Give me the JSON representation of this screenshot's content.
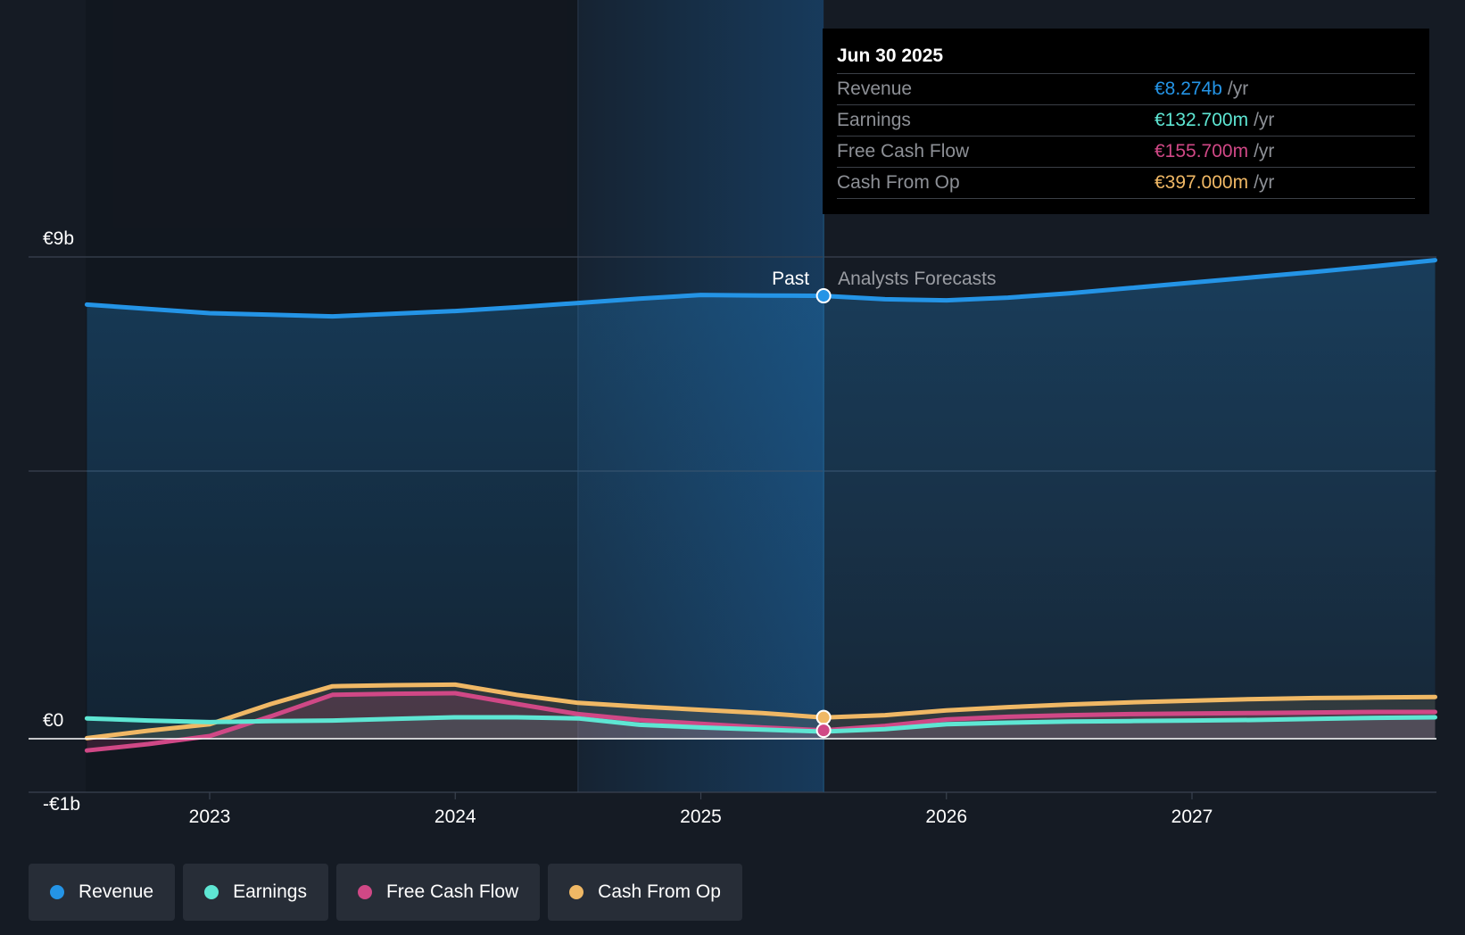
{
  "colors": {
    "revenue": "#2494e6",
    "earnings": "#5ee6d3",
    "fcf": "#d04886",
    "cfo": "#f0b865",
    "background": "#151b24"
  },
  "tooltip": {
    "date": "Jun 30 2025",
    "unit": "/yr",
    "rows": [
      {
        "label": "Revenue",
        "value": "€8.274b"
      },
      {
        "label": "Earnings",
        "value": "€132.700m"
      },
      {
        "label": "Free Cash Flow",
        "value": "€155.700m"
      },
      {
        "label": "Cash From Op",
        "value": "€397.000m"
      }
    ]
  },
  "chart_data": {
    "type": "line",
    "title": "",
    "xlabel": "",
    "ylabel": "",
    "ylim": [
      -1,
      9
    ],
    "xlim": [
      2022.5,
      2027.99
    ],
    "y_tick_labels": [
      {
        "value": 9,
        "label": "€9b"
      },
      {
        "value": 0,
        "label": "€0"
      },
      {
        "value": -1,
        "label": "-€1b"
      }
    ],
    "gridlines": [
      9,
      5
    ],
    "x_ticks": [
      {
        "value": 2023,
        "label": "2023"
      },
      {
        "value": 2024,
        "label": "2024"
      },
      {
        "value": 2025,
        "label": "2025"
      },
      {
        "value": 2026,
        "label": "2026"
      },
      {
        "value": 2027,
        "label": "2027"
      }
    ],
    "divider_x": 2025.5,
    "past_label": "Past",
    "forecast_label": "Analysts Forecasts",
    "series": [
      {
        "name": "Revenue",
        "key": "revenue",
        "x": [
          2022.5,
          2022.75,
          2023.0,
          2023.25,
          2023.5,
          2023.75,
          2024.0,
          2024.25,
          2024.5,
          2024.75,
          2025.0,
          2025.25,
          2025.5,
          2025.75,
          2026.0,
          2026.25,
          2026.5,
          2026.75,
          2027.0,
          2027.25,
          2027.5,
          2027.75,
          2027.99
        ],
        "values": [
          8.11,
          8.03,
          7.95,
          7.92,
          7.89,
          7.94,
          7.99,
          8.06,
          8.14,
          8.22,
          8.29,
          8.28,
          8.274,
          8.21,
          8.19,
          8.24,
          8.32,
          8.42,
          8.52,
          8.62,
          8.72,
          8.83,
          8.94
        ]
      },
      {
        "name": "Earnings",
        "key": "earnings",
        "x": [
          2022.5,
          2022.75,
          2023.0,
          2023.25,
          2023.5,
          2023.75,
          2024.0,
          2024.25,
          2024.5,
          2024.75,
          2025.0,
          2025.25,
          2025.5,
          2025.75,
          2026.0,
          2026.25,
          2026.5,
          2026.75,
          2027.0,
          2027.25,
          2027.5,
          2027.75,
          2027.99
        ],
        "values": [
          0.38,
          0.34,
          0.31,
          0.33,
          0.34,
          0.37,
          0.4,
          0.4,
          0.38,
          0.26,
          0.21,
          0.17,
          0.133,
          0.18,
          0.27,
          0.3,
          0.32,
          0.33,
          0.34,
          0.35,
          0.37,
          0.39,
          0.4
        ]
      },
      {
        "name": "Free Cash Flow",
        "key": "fcf",
        "x": [
          2022.5,
          2022.75,
          2023.0,
          2023.25,
          2023.5,
          2023.75,
          2024.0,
          2024.25,
          2024.5,
          2024.75,
          2025.0,
          2025.25,
          2025.5,
          2025.75,
          2026.0,
          2026.25,
          2026.5,
          2026.75,
          2027.0,
          2027.25,
          2027.5,
          2027.75,
          2027.99
        ],
        "values": [
          -0.22,
          -0.1,
          0.05,
          0.42,
          0.82,
          0.84,
          0.85,
          0.65,
          0.46,
          0.35,
          0.28,
          0.21,
          0.156,
          0.24,
          0.36,
          0.41,
          0.44,
          0.46,
          0.47,
          0.48,
          0.49,
          0.5,
          0.5
        ]
      },
      {
        "name": "Cash From Op",
        "key": "cfo",
        "x": [
          2022.5,
          2022.75,
          2023.0,
          2023.25,
          2023.5,
          2023.75,
          2024.0,
          2024.25,
          2024.5,
          2024.75,
          2025.0,
          2025.25,
          2025.5,
          2025.75,
          2026.0,
          2026.25,
          2026.5,
          2026.75,
          2027.0,
          2027.25,
          2027.5,
          2027.75,
          2027.99
        ],
        "values": [
          0.01,
          0.15,
          0.27,
          0.65,
          0.98,
          1.0,
          1.01,
          0.82,
          0.67,
          0.6,
          0.54,
          0.48,
          0.397,
          0.44,
          0.53,
          0.59,
          0.64,
          0.68,
          0.71,
          0.74,
          0.76,
          0.77,
          0.78
        ]
      }
    ]
  },
  "legend": {
    "items": [
      {
        "label": "Revenue",
        "key": "revenue"
      },
      {
        "label": "Earnings",
        "key": "earnings"
      },
      {
        "label": "Free Cash Flow",
        "key": "fcf"
      },
      {
        "label": "Cash From Op",
        "key": "cfo"
      }
    ]
  }
}
